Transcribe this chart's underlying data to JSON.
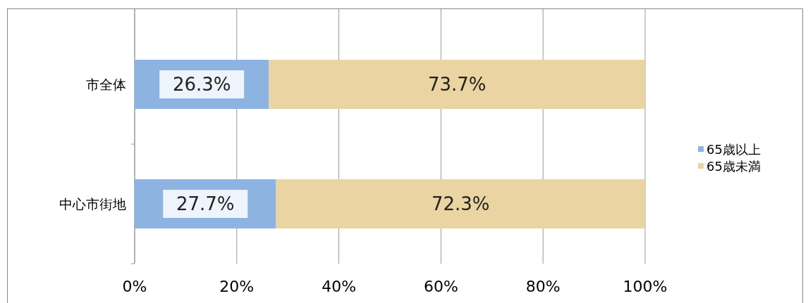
{
  "chart_data": {
    "type": "bar",
    "orientation": "horizontal",
    "stacked": true,
    "categories": [
      "市全体",
      "中心市街地"
    ],
    "series": [
      {
        "name": "65歳以上",
        "color": "#8db3e2",
        "values": [
          26.3,
          27.7
        ],
        "value_labels": [
          "26.3%",
          "27.7%"
        ]
      },
      {
        "name": "65歳未満",
        "color": "#ead4a2",
        "values": [
          73.7,
          72.3
        ],
        "value_labels": [
          "73.7%",
          "72.3%"
        ]
      }
    ],
    "xlim": [
      0,
      100
    ],
    "xticks": [
      {
        "value": 0,
        "label": "0%"
      },
      {
        "value": 20,
        "label": "20%"
      },
      {
        "value": 40,
        "label": "40%"
      },
      {
        "value": 60,
        "label": "60%"
      },
      {
        "value": 80,
        "label": "80%"
      },
      {
        "value": 100,
        "label": "100%"
      }
    ],
    "grid": "x",
    "legend": "right"
  }
}
